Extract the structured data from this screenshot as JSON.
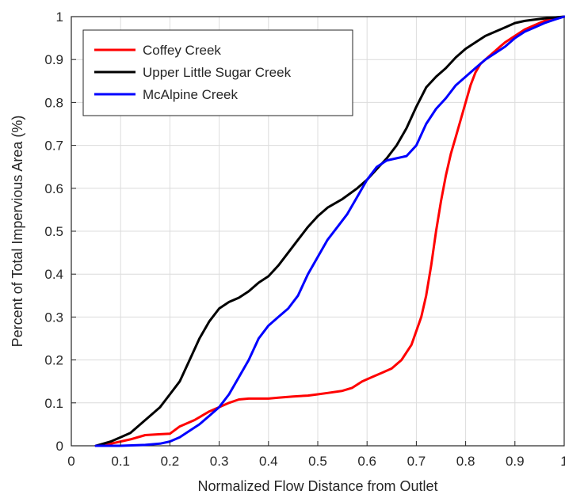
{
  "chart_data": {
    "type": "line",
    "title": "",
    "xlabel": "Normalized Flow Distance from Outlet",
    "ylabel": "Percent of Total Impervious Area (%)",
    "xlim": [
      0,
      1
    ],
    "ylim": [
      0,
      1
    ],
    "xticks": [
      "0",
      "0.1",
      "0.2",
      "0.3",
      "0.4",
      "0.5",
      "0.6",
      "0.7",
      "0.8",
      "0.9",
      "1"
    ],
    "yticks": [
      "0",
      "0.1",
      "0.2",
      "0.3",
      "0.4",
      "0.5",
      "0.6",
      "0.7",
      "0.8",
      "0.9",
      "1"
    ],
    "grid": true,
    "legend_position": "top-left",
    "series": [
      {
        "name": "Coffey Creek",
        "color": "#ff0000",
        "x": [
          0.05,
          0.08,
          0.1,
          0.12,
          0.15,
          0.18,
          0.2,
          0.22,
          0.25,
          0.28,
          0.3,
          0.32,
          0.34,
          0.36,
          0.38,
          0.4,
          0.42,
          0.45,
          0.48,
          0.5,
          0.52,
          0.55,
          0.57,
          0.59,
          0.61,
          0.63,
          0.65,
          0.67,
          0.69,
          0.71,
          0.72,
          0.73,
          0.74,
          0.75,
          0.76,
          0.77,
          0.78,
          0.79,
          0.8,
          0.81,
          0.82,
          0.83,
          0.84,
          0.85,
          0.86,
          0.87,
          0.88,
          0.9,
          0.92,
          0.94,
          0.96,
          0.98,
          1.0
        ],
        "y": [
          0.0,
          0.005,
          0.01,
          0.015,
          0.025,
          0.027,
          0.028,
          0.045,
          0.06,
          0.08,
          0.09,
          0.1,
          0.108,
          0.11,
          0.11,
          0.11,
          0.112,
          0.115,
          0.117,
          0.12,
          0.123,
          0.128,
          0.135,
          0.15,
          0.16,
          0.17,
          0.18,
          0.2,
          0.235,
          0.3,
          0.35,
          0.42,
          0.5,
          0.57,
          0.63,
          0.68,
          0.72,
          0.76,
          0.8,
          0.84,
          0.87,
          0.89,
          0.9,
          0.91,
          0.92,
          0.93,
          0.94,
          0.955,
          0.97,
          0.98,
          0.99,
          0.995,
          1.0
        ]
      },
      {
        "name": "Upper Little Sugar Creek",
        "color": "#000000",
        "x": [
          0.05,
          0.08,
          0.1,
          0.12,
          0.14,
          0.16,
          0.18,
          0.2,
          0.22,
          0.24,
          0.26,
          0.28,
          0.3,
          0.32,
          0.34,
          0.36,
          0.38,
          0.4,
          0.42,
          0.44,
          0.46,
          0.48,
          0.5,
          0.52,
          0.55,
          0.58,
          0.6,
          0.62,
          0.64,
          0.66,
          0.68,
          0.7,
          0.72,
          0.74,
          0.76,
          0.78,
          0.8,
          0.82,
          0.84,
          0.86,
          0.88,
          0.9,
          0.92,
          0.94,
          0.96,
          0.98,
          1.0
        ],
        "y": [
          0.0,
          0.01,
          0.02,
          0.03,
          0.05,
          0.07,
          0.09,
          0.12,
          0.15,
          0.2,
          0.25,
          0.29,
          0.32,
          0.335,
          0.345,
          0.36,
          0.38,
          0.395,
          0.42,
          0.45,
          0.48,
          0.51,
          0.535,
          0.555,
          0.575,
          0.6,
          0.62,
          0.645,
          0.67,
          0.7,
          0.74,
          0.79,
          0.835,
          0.86,
          0.88,
          0.905,
          0.925,
          0.94,
          0.955,
          0.965,
          0.975,
          0.985,
          0.99,
          0.993,
          0.996,
          0.998,
          1.0
        ]
      },
      {
        "name": "McAlpine Creek",
        "color": "#0000ff",
        "x": [
          0.05,
          0.1,
          0.15,
          0.18,
          0.2,
          0.22,
          0.24,
          0.26,
          0.28,
          0.3,
          0.32,
          0.34,
          0.36,
          0.38,
          0.4,
          0.42,
          0.44,
          0.46,
          0.48,
          0.5,
          0.52,
          0.54,
          0.56,
          0.58,
          0.6,
          0.62,
          0.64,
          0.66,
          0.68,
          0.7,
          0.72,
          0.74,
          0.76,
          0.78,
          0.8,
          0.82,
          0.84,
          0.86,
          0.88,
          0.9,
          0.92,
          0.94,
          0.96,
          0.98,
          1.0
        ],
        "y": [
          0.0,
          0.0,
          0.002,
          0.005,
          0.01,
          0.02,
          0.035,
          0.05,
          0.07,
          0.09,
          0.12,
          0.16,
          0.2,
          0.25,
          0.28,
          0.3,
          0.32,
          0.35,
          0.4,
          0.44,
          0.48,
          0.51,
          0.54,
          0.58,
          0.62,
          0.65,
          0.665,
          0.67,
          0.675,
          0.7,
          0.75,
          0.785,
          0.81,
          0.84,
          0.86,
          0.88,
          0.9,
          0.915,
          0.93,
          0.95,
          0.965,
          0.975,
          0.985,
          0.993,
          1.0
        ]
      }
    ]
  }
}
